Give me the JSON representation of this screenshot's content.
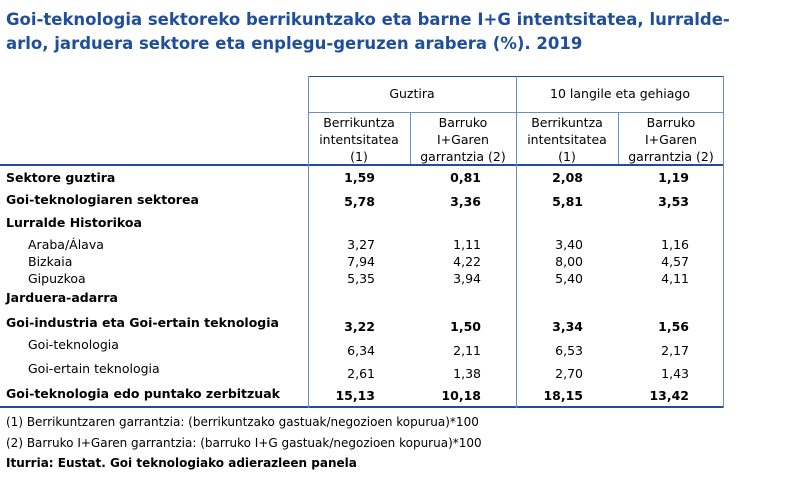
{
  "title": "Goi-teknologia sektoreko berrikuntzako eta barne I+G intentsitatea, lurraldearlo, jarduera sektore eta enplegu-geruzen arabera (%). 2019",
  "title_line1": "Goi-teknologia sektoreko berrikuntzako eta barne I+G intentsitatea, lurralde-",
  "title_line2": "arlo, jarduera sektore eta enplegu-geruzen arabera (%). 2019",
  "groups": [
    "Guztira",
    "10 langile eta gehiago"
  ],
  "columns": [
    [
      "Berrikuntza",
      "intentsitatea",
      "(1)"
    ],
    [
      "Barruko",
      "I+Garen",
      "garrantzia (2)"
    ],
    [
      "Berrikuntza",
      "intentsitatea",
      "(1)"
    ],
    [
      "Barruko",
      "I+Garen",
      "garrantzia (2)"
    ]
  ],
  "rows": [
    {
      "label": "Sektore guztira",
      "values": [
        "1,59",
        "0,81",
        "2,08",
        "1,19"
      ]
    },
    {
      "label": "Goi-teknologiaren sektorea",
      "values": [
        "5,78",
        "3,36",
        "5,81",
        "3,53"
      ]
    },
    {
      "label": "Lurralde Historikoa",
      "values": [
        "",
        "",
        "",
        ""
      ]
    },
    {
      "label": "Araba/Álava",
      "values": [
        "3,27",
        "1,11",
        "3,40",
        "1,16"
      ]
    },
    {
      "label": "Bizkaia",
      "values": [
        "7,94",
        "4,22",
        "8,00",
        "4,57"
      ]
    },
    {
      "label": "Gipuzkoa",
      "values": [
        "5,35",
        "3,94",
        "5,40",
        "4,11"
      ]
    },
    {
      "label": "Jarduera-adarra",
      "values": [
        "",
        "",
        "",
        ""
      ]
    },
    {
      "label": "Goi-industria eta Goi-ertain teknologia",
      "values": [
        "3,22",
        "1,50",
        "3,34",
        "1,56"
      ]
    },
    {
      "label": "Goi-teknologia",
      "values": [
        "6,34",
        "2,11",
        "6,53",
        "2,17"
      ]
    },
    {
      "label": "Goi-ertain teknologia",
      "values": [
        "2,61",
        "1,38",
        "2,70",
        "1,43"
      ]
    },
    {
      "label": "Goi-teknologia edo puntako zerbitzuak",
      "values": [
        "15,13",
        "10,18",
        "18,15",
        "13,42"
      ]
    }
  ],
  "footnotes": [
    "(1) Berrikuntzaren garrantzia: (berrikuntzako gastuak/negozioen kopurua)*100",
    "(2) Barruko I+Garen garrantzia: (barruko I+G gastuak/negozioen kopurua)*100"
  ],
  "source": "Iturria: Eustat. Goi teknologiako adierazleen panela"
}
